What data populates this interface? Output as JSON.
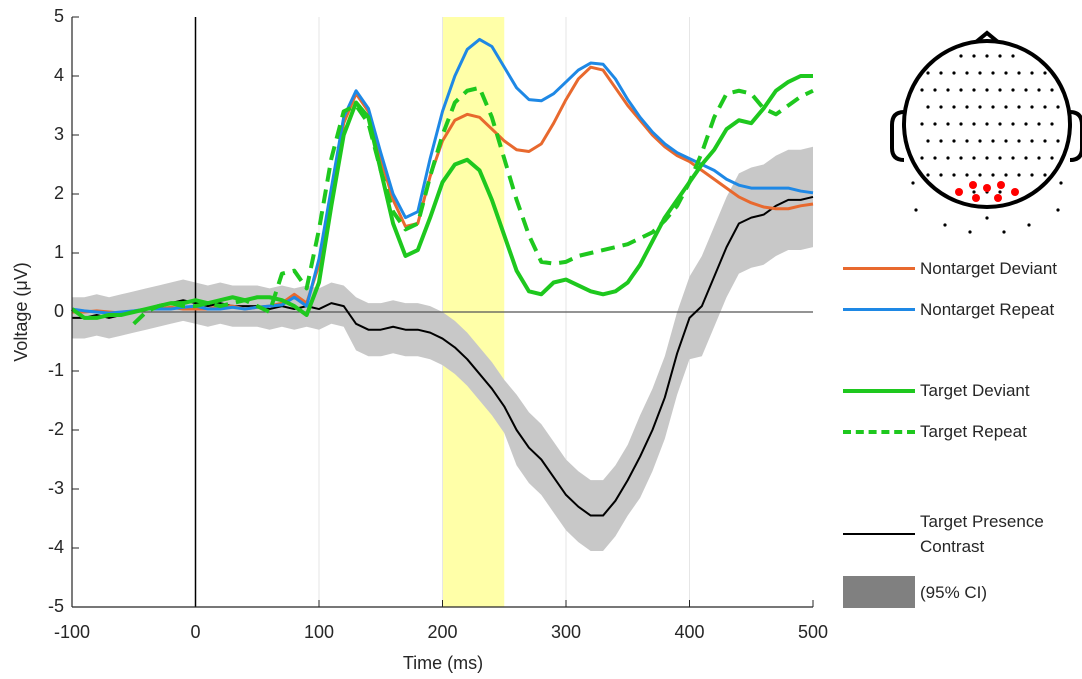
{
  "chart_data": {
    "type": "line",
    "x_label": "Time (ms)",
    "y_label": "Voltage (μV)",
    "xlim": [
      -100,
      500
    ],
    "ylim": [
      -5,
      5
    ],
    "xticks": [
      -100,
      0,
      100,
      200,
      300,
      400,
      500
    ],
    "yticks": [
      -5,
      -4,
      -3,
      -2,
      -1,
      0,
      1,
      2,
      3,
      4,
      5
    ],
    "grid": "x",
    "highlight_x": [
      200,
      250
    ],
    "highlight_color": "#ffffa8",
    "x": [
      -100,
      -90,
      -80,
      -70,
      -60,
      -50,
      -40,
      -30,
      -20,
      -10,
      0,
      10,
      20,
      30,
      40,
      50,
      60,
      70,
      80,
      90,
      100,
      110,
      120,
      130,
      140,
      150,
      160,
      170,
      180,
      190,
      200,
      210,
      220,
      230,
      240,
      250,
      260,
      270,
      280,
      290,
      300,
      310,
      320,
      330,
      340,
      350,
      360,
      370,
      380,
      390,
      400,
      410,
      420,
      430,
      440,
      450,
      460,
      470,
      480,
      490,
      500
    ],
    "series": [
      {
        "name": "Nontarget Deviant",
        "color": "#e8692e",
        "dash": false,
        "width": 3,
        "values": [
          0,
          0,
          0.02,
          0,
          -0.02,
          0,
          0.05,
          0.05,
          0.08,
          0.05,
          0.05,
          0.05,
          0.1,
          0.1,
          0.05,
          0.08,
          0.1,
          0.15,
          0.3,
          0.15,
          0.8,
          2.0,
          3.2,
          3.7,
          3.4,
          2.6,
          1.9,
          1.45,
          1.5,
          2.3,
          2.9,
          3.25,
          3.35,
          3.3,
          3.1,
          2.9,
          2.75,
          2.72,
          2.85,
          3.2,
          3.6,
          3.95,
          4.15,
          4.1,
          3.8,
          3.5,
          3.25,
          3.0,
          2.8,
          2.65,
          2.55,
          2.4,
          2.25,
          2.1,
          1.95,
          1.85,
          1.78,
          1.75,
          1.75,
          1.8,
          1.83
        ]
      },
      {
        "name": "Nontarget Repeat",
        "color": "#1e88e5",
        "dash": false,
        "width": 3,
        "values": [
          0.05,
          0.02,
          0,
          -0.02,
          0,
          0.02,
          0.05,
          0.05,
          0.05,
          0.08,
          0.1,
          0.05,
          0.05,
          0.08,
          0.05,
          0.08,
          0.1,
          0.12,
          0.25,
          0.1,
          0.9,
          2.1,
          3.3,
          3.75,
          3.45,
          2.7,
          2.0,
          1.6,
          1.7,
          2.6,
          3.4,
          4.0,
          4.45,
          4.62,
          4.5,
          4.15,
          3.8,
          3.6,
          3.58,
          3.7,
          3.9,
          4.1,
          4.22,
          4.2,
          3.95,
          3.6,
          3.3,
          3.05,
          2.85,
          2.7,
          2.6,
          2.5,
          2.4,
          2.25,
          2.15,
          2.1,
          2.1,
          2.1,
          2.1,
          2.05,
          2.02
        ]
      },
      {
        "name": "Target Deviant",
        "color": "#1ec81e",
        "dash": false,
        "width": 4,
        "values": [
          0.05,
          -0.1,
          -0.1,
          -0.05,
          -0.05,
          0,
          0.05,
          0.1,
          0.15,
          0.15,
          0.2,
          0.15,
          0.2,
          0.25,
          0.2,
          0.25,
          0.25,
          0.2,
          0.1,
          -0.05,
          0.5,
          1.8,
          3.0,
          3.55,
          3.3,
          2.4,
          1.5,
          0.95,
          1.05,
          1.6,
          2.2,
          2.5,
          2.58,
          2.4,
          1.9,
          1.3,
          0.7,
          0.35,
          0.3,
          0.5,
          0.55,
          0.45,
          0.35,
          0.3,
          0.35,
          0.5,
          0.8,
          1.2,
          1.6,
          1.9,
          2.2,
          2.5,
          2.75,
          3.1,
          3.25,
          3.2,
          3.45,
          3.75,
          3.9,
          4.0,
          4.0
        ]
      },
      {
        "name": "Target Repeat",
        "color": "#1ec81e",
        "dash": true,
        "width": 4,
        "values": [
          null,
          null,
          null,
          null,
          null,
          -0.2,
          0,
          0.1,
          0.15,
          0.1,
          0.1,
          0.15,
          0.1,
          0.15,
          0.2,
          0.1,
          0.0,
          0.65,
          0.7,
          0.4,
          1.4,
          2.6,
          3.4,
          3.5,
          3.2,
          2.4,
          1.7,
          1.4,
          1.5,
          2.3,
          3.0,
          3.55,
          3.75,
          3.8,
          3.3,
          2.6,
          1.9,
          1.3,
          0.85,
          0.82,
          0.85,
          0.95,
          1.0,
          1.05,
          1.1,
          1.15,
          1.25,
          1.35,
          1.55,
          1.8,
          2.2,
          2.7,
          3.3,
          3.7,
          3.75,
          3.7,
          3.45,
          3.35,
          3.5,
          3.65,
          3.75
        ]
      },
      {
        "name": "Target Presence Contrast",
        "color": "#000000",
        "dash": false,
        "width": 2,
        "error_name": "(95% CI)",
        "error_color": "#c8c8c8",
        "error_legend_color": "#808080",
        "values": [
          -0.1,
          -0.1,
          -0.05,
          -0.1,
          -0.05,
          0,
          0.05,
          0.1,
          0.15,
          0.2,
          0.15,
          0.1,
          0.15,
          0.1,
          0.1,
          0.1,
          0.05,
          0.1,
          0.05,
          0.1,
          0.05,
          0.15,
          0.1,
          -0.2,
          -0.3,
          -0.3,
          -0.25,
          -0.3,
          -0.3,
          -0.35,
          -0.45,
          -0.6,
          -0.8,
          -1.05,
          -1.3,
          -1.6,
          -2.0,
          -2.3,
          -2.5,
          -2.8,
          -3.1,
          -3.3,
          -3.45,
          -3.45,
          -3.2,
          -2.85,
          -2.45,
          -2.0,
          -1.45,
          -0.7,
          -0.1,
          0.1,
          0.6,
          1.1,
          1.5,
          1.6,
          1.65,
          1.8,
          1.9,
          1.9,
          1.95
        ],
        "errors": [
          0.35,
          0.35,
          0.35,
          0.35,
          0.35,
          0.35,
          0.35,
          0.35,
          0.35,
          0.35,
          0.35,
          0.35,
          0.35,
          0.35,
          0.35,
          0.35,
          0.35,
          0.35,
          0.35,
          0.35,
          0.35,
          0.35,
          0.35,
          0.45,
          0.45,
          0.45,
          0.45,
          0.45,
          0.45,
          0.45,
          0.45,
          0.45,
          0.45,
          0.45,
          0.45,
          0.45,
          0.6,
          0.6,
          0.6,
          0.6,
          0.6,
          0.6,
          0.6,
          0.6,
          0.6,
          0.6,
          0.7,
          0.7,
          0.7,
          0.7,
          0.7,
          0.85,
          0.85,
          0.85,
          0.85,
          0.85,
          0.85,
          0.85,
          0.85,
          0.85,
          0.85
        ]
      }
    ]
  }
}
